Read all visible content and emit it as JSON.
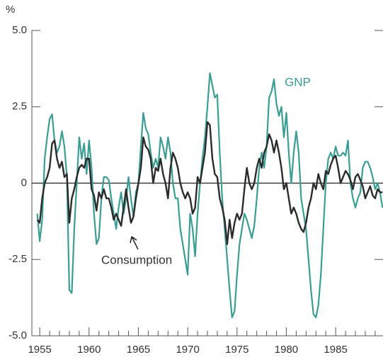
{
  "chart_data": {
    "type": "line",
    "ylabel": "%",
    "x": [
      1954.75,
      1955,
      1955.25,
      1955.5,
      1955.75,
      1956,
      1956.25,
      1956.5,
      1956.75,
      1957,
      1957.25,
      1957.5,
      1957.75,
      1958,
      1958.25,
      1958.5,
      1958.75,
      1959,
      1959.25,
      1959.5,
      1959.75,
      1960,
      1960.25,
      1960.5,
      1960.75,
      1961,
      1961.25,
      1961.5,
      1961.75,
      1962,
      1962.25,
      1962.5,
      1962.75,
      1963,
      1963.25,
      1963.5,
      1963.75,
      1964,
      1964.25,
      1964.5,
      1964.75,
      1965,
      1965.25,
      1965.5,
      1965.75,
      1966,
      1966.25,
      1966.5,
      1966.75,
      1967,
      1967.25,
      1967.5,
      1967.75,
      1968,
      1968.25,
      1968.5,
      1968.75,
      1969,
      1969.25,
      1969.5,
      1969.75,
      1970,
      1970.25,
      1970.5,
      1970.75,
      1971,
      1971.25,
      1971.5,
      1971.75,
      1972,
      1972.25,
      1972.5,
      1972.75,
      1973,
      1973.25,
      1973.5,
      1973.75,
      1974,
      1974.25,
      1974.5,
      1974.75,
      1975,
      1975.25,
      1975.5,
      1975.75,
      1976,
      1976.25,
      1976.5,
      1976.75,
      1977,
      1977.25,
      1977.5,
      1977.75,
      1978,
      1978.25,
      1978.5,
      1978.75,
      1979,
      1979.25,
      1979.5,
      1979.75,
      1980,
      1980.25,
      1980.5,
      1980.75,
      1981,
      1981.25,
      1981.5,
      1981.75,
      1982,
      1982.25,
      1982.5,
      1982.75,
      1983,
      1983.25,
      1983.5,
      1983.75,
      1984,
      1984.25,
      1984.5,
      1984.75,
      1985,
      1985.25,
      1985.5,
      1985.75,
      1986,
      1986.25,
      1986.5,
      1986.75,
      1987,
      1987.25,
      1987.5,
      1987.75,
      1988,
      1988.25,
      1988.5,
      1988.75,
      1989,
      1989.25,
      1989.5,
      1989.75
    ],
    "series": [
      {
        "name": "GNP",
        "color": "#3a9e94",
        "values": [
          -1.0,
          -1.9,
          -1.2,
          0.8,
          1.5,
          2.1,
          2.25,
          1.4,
          1.0,
          1.2,
          1.7,
          1.2,
          0.2,
          -3.5,
          -3.6,
          -1.5,
          0.0,
          1.5,
          0.8,
          1.3,
          0.3,
          1.4,
          0.5,
          -1.0,
          -2.0,
          -1.8,
          -0.5,
          0.2,
          0.2,
          0.1,
          -0.5,
          -1.0,
          -1.5,
          -0.8,
          -0.3,
          -1.0,
          -0.5,
          0.2,
          -0.5,
          -1.1,
          -0.3,
          0.0,
          1.2,
          2.3,
          1.8,
          1.6,
          1.0,
          0.5,
          0.8,
          0.5,
          1.5,
          1.2,
          0.8,
          1.5,
          1.0,
          0.0,
          -0.5,
          -0.5,
          -1.5,
          -2.0,
          -2.5,
          -3.0,
          -1.0,
          -1.5,
          -2.4,
          -1.0,
          0.0,
          0.8,
          1.5,
          2.5,
          3.6,
          3.2,
          2.8,
          2.9,
          1.0,
          -0.5,
          -1.5,
          -2.5,
          -3.5,
          -4.4,
          -4.2,
          -3.0,
          -2.0,
          -1.5,
          -1.0,
          -1.2,
          -1.5,
          -1.8,
          -1.4,
          -0.5,
          0.5,
          1.0,
          0.5,
          1.2,
          2.8,
          3.0,
          3.4,
          2.6,
          2.2,
          2.5,
          1.5,
          2.3,
          1.0,
          0.0,
          1.0,
          1.7,
          1.0,
          -0.5,
          -1.0,
          -1.5,
          -2.5,
          -3.5,
          -4.3,
          -4.4,
          -4.0,
          -3.0,
          -1.5,
          0.0,
          0.8,
          1.0,
          0.8,
          1.2,
          0.9,
          0.9,
          1.0,
          0.9,
          1.4,
          0.0,
          -0.5,
          -0.8,
          -0.5,
          -0.3,
          0.5,
          0.7,
          0.7,
          0.5,
          0.2,
          -0.2,
          0.0,
          -0.3,
          -0.8
        ]
      },
      {
        "name": "Consumption",
        "color": "#2b2b2b",
        "values": [
          -1.2,
          -1.3,
          -0.5,
          0.0,
          0.2,
          0.5,
          1.3,
          1.4,
          0.8,
          0.5,
          0.7,
          0.2,
          0.3,
          -1.3,
          -0.5,
          -0.2,
          0.2,
          0.5,
          0.6,
          0.5,
          0.8,
          0.8,
          -0.2,
          -0.4,
          -0.9,
          -0.3,
          -0.5,
          -0.2,
          -0.5,
          -0.5,
          -0.8,
          -1.2,
          -1.0,
          -1.2,
          -1.4,
          -0.8,
          -0.2,
          -0.8,
          -1.3,
          -1.1,
          -0.5,
          0.0,
          0.5,
          1.5,
          1.2,
          1.1,
          0.8,
          0.0,
          0.5,
          0.4,
          0.8,
          0.3,
          0.0,
          -0.5,
          0.5,
          1.0,
          0.8,
          0.5,
          0.0,
          -0.3,
          -0.5,
          -0.3,
          -0.5,
          -1.0,
          -0.8,
          0.2,
          0.0,
          0.5,
          1.0,
          2.0,
          1.9,
          0.8,
          0.3,
          0.2,
          -0.5,
          -0.8,
          -1.2,
          -2.0,
          -1.2,
          -1.8,
          -1.3,
          -1.0,
          -1.2,
          -1.0,
          -0.2,
          0.5,
          0.0,
          -0.2,
          0.0,
          0.5,
          0.8,
          0.5,
          1.0,
          1.2,
          1.6,
          1.4,
          1.0,
          1.4,
          1.0,
          0.5,
          -0.2,
          0.0,
          -0.5,
          -1.0,
          -0.8,
          -1.0,
          -1.3,
          -1.5,
          -1.6,
          -1.3,
          -0.8,
          -0.5,
          0.0,
          -0.2,
          0.3,
          0.0,
          -0.2,
          0.4,
          0.3,
          0.6,
          0.8,
          0.9,
          0.5,
          0.0,
          0.2,
          0.4,
          0.3,
          0.1,
          -0.2,
          0.2,
          0.3,
          0.1,
          -0.1,
          -0.5,
          -0.3,
          -0.1,
          -0.4,
          -0.5,
          -0.2,
          -0.3,
          -0.3
        ]
      }
    ],
    "xlim": [
      1954.2,
      1989.8
    ],
    "xticks": [
      1955,
      1960,
      1965,
      1970,
      1975,
      1980,
      1985
    ],
    "xminorticks": [
      1956,
      1957,
      1958,
      1959,
      1961,
      1962,
      1963,
      1964,
      1966,
      1967,
      1968,
      1969,
      1971,
      1972,
      1973,
      1974,
      1976,
      1977,
      1978,
      1979,
      1981,
      1982,
      1983,
      1984,
      1986,
      1987,
      1988,
      1989
    ],
    "ylim": [
      -5,
      5
    ],
    "yticks": [
      {
        "value": -5,
        "label": "-5.0"
      },
      -2.5,
      0,
      2.5,
      {
        "value": 5,
        "label": "5.0"
      }
    ]
  }
}
